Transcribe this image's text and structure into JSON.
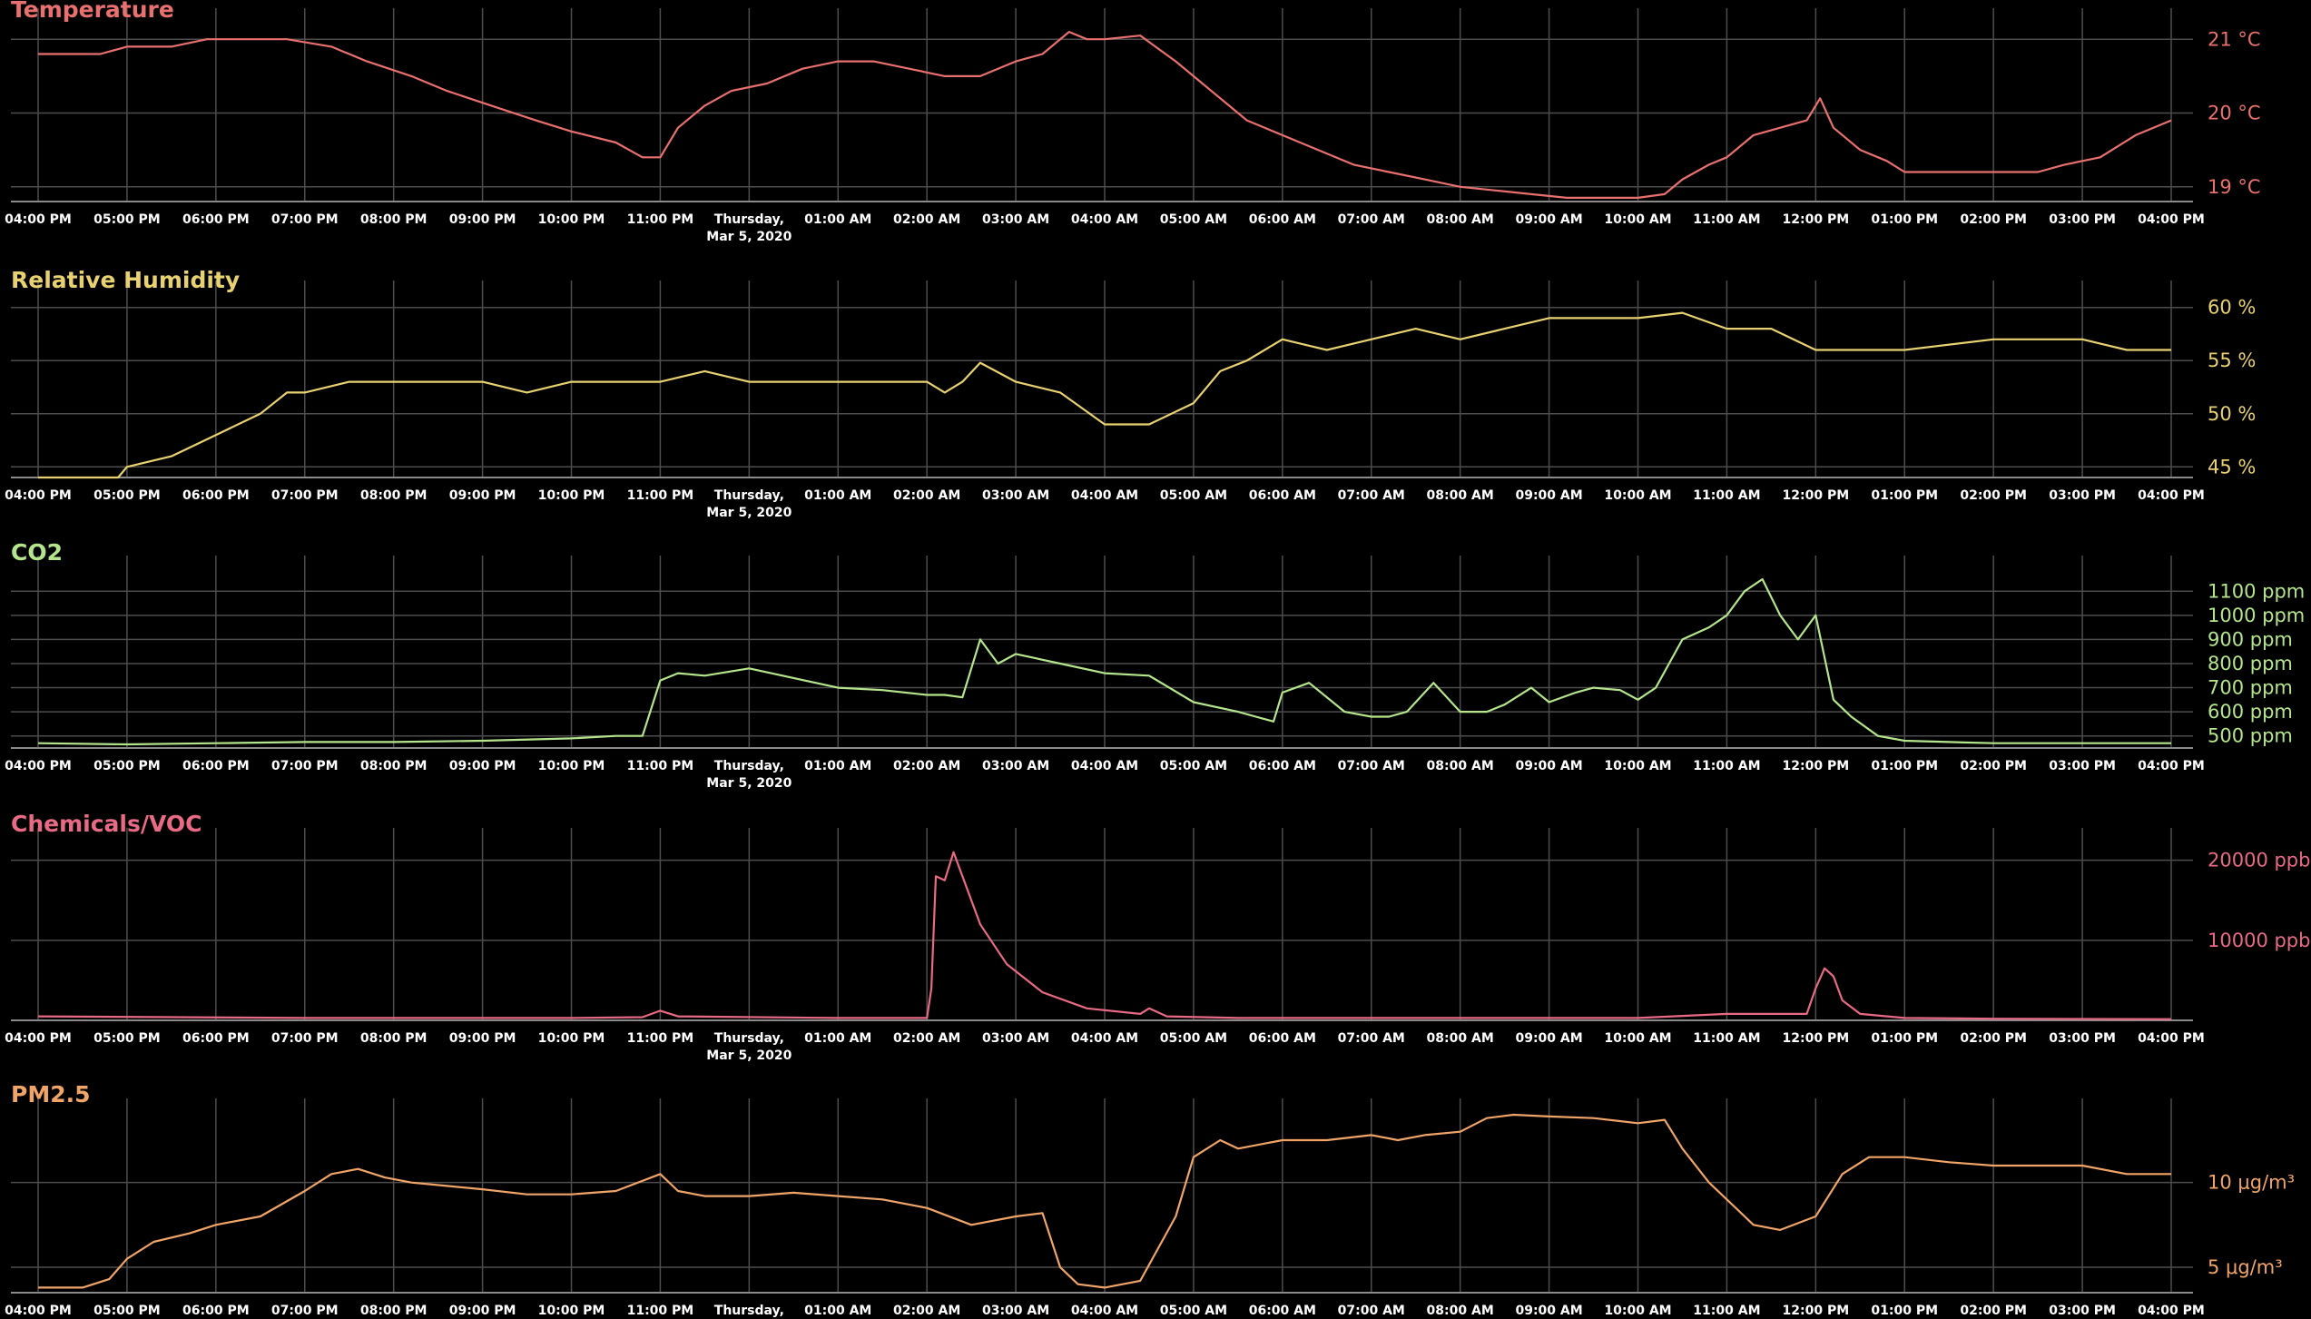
{
  "x_ticks": [
    "04:00 PM",
    "05:00 PM",
    "06:00 PM",
    "07:00 PM",
    "08:00 PM",
    "09:00 PM",
    "10:00 PM",
    "11:00 PM",
    "Thursday,",
    "01:00 AM",
    "02:00 AM",
    "03:00 AM",
    "04:00 AM",
    "05:00 AM",
    "06:00 AM",
    "07:00 AM",
    "08:00 AM",
    "09:00 AM",
    "10:00 AM",
    "11:00 AM",
    "12:00 PM",
    "01:00 PM",
    "02:00 PM",
    "03:00 PM",
    "04:00 PM"
  ],
  "x_tick_sub": "Mar 5, 2020",
  "chart_data": [
    {
      "type": "line",
      "title": "Temperature",
      "color": "#e8706e",
      "ylim": [
        18.8,
        21.2
      ],
      "ytick_values": [
        19,
        20,
        21
      ],
      "ytick_labels": [
        "19 °C",
        "20 °C",
        "21 °C"
      ],
      "x": [
        0,
        0.7,
        1,
        1.5,
        1.9,
        2.4,
        2.8,
        3.3,
        3.7,
        4.2,
        4.6,
        5.1,
        5.6,
        6.0,
        6.5,
        6.8,
        7,
        7.2,
        7.5,
        7.8,
        8.2,
        8.6,
        9,
        9.4,
        9.8,
        10.2,
        10.6,
        11,
        11.3,
        11.6,
        11.8,
        12,
        12.4,
        12.8,
        13.2,
        13.6,
        14,
        14.4,
        14.8,
        15.2,
        15.6,
        16,
        16.4,
        16.8,
        17.2,
        17.6,
        18,
        18.3,
        18.5,
        18.8,
        19,
        19.3,
        19.6,
        19.9,
        20.05,
        20.2,
        20.5,
        20.8,
        21,
        21.5,
        22,
        22.5,
        22.8,
        23.2,
        23.6,
        24
      ],
      "y": [
        20.8,
        20.8,
        20.9,
        20.9,
        21,
        21,
        21,
        20.9,
        20.7,
        20.5,
        20.3,
        20.1,
        19.9,
        19.75,
        19.6,
        19.4,
        19.4,
        19.8,
        20.1,
        20.3,
        20.4,
        20.6,
        20.7,
        20.7,
        20.6,
        20.5,
        20.5,
        20.7,
        20.8,
        21.1,
        21,
        21,
        21.05,
        20.7,
        20.3,
        19.9,
        19.7,
        19.5,
        19.3,
        19.2,
        19.1,
        19,
        18.95,
        18.9,
        18.85,
        18.85,
        18.85,
        18.9,
        19.1,
        19.3,
        19.4,
        19.7,
        19.8,
        19.9,
        20.2,
        19.8,
        19.5,
        19.35,
        19.2,
        19.2,
        19.2,
        19.2,
        19.3,
        19.4,
        19.7,
        19.9
      ]
    },
    {
      "type": "line",
      "title": "Relative Humidity",
      "color": "#e8d170",
      "ylim": [
        44,
        61
      ],
      "ytick_values": [
        45,
        50,
        55,
        60
      ],
      "ytick_labels": [
        "45 %",
        "50 %",
        "55 %",
        "60 %"
      ],
      "x": [
        0,
        0.9,
        1,
        1.5,
        2,
        2.5,
        2.8,
        3,
        3.5,
        4,
        5,
        5.5,
        6,
        6.5,
        7,
        7.5,
        8,
        9,
        10,
        10.2,
        10.4,
        10.6,
        11,
        11.5,
        12,
        12.5,
        13,
        13.3,
        13.6,
        14,
        14.5,
        15,
        15.5,
        16,
        16.5,
        17,
        17.5,
        18,
        18.5,
        19,
        19.5,
        20,
        21,
        22,
        23,
        23.5,
        24
      ],
      "y": [
        44,
        44,
        45,
        46,
        48,
        50,
        52,
        52,
        53,
        53,
        53,
        52,
        53,
        53,
        53,
        54,
        53,
        53,
        53,
        52,
        53,
        54.8,
        53,
        52,
        49,
        49,
        51,
        54,
        55,
        57,
        56,
        57,
        58,
        57,
        58,
        59,
        59,
        59,
        59.5,
        58,
        58,
        56,
        56,
        57,
        57,
        56,
        56
      ]
    },
    {
      "type": "line",
      "title": "CO2",
      "color": "#b4e58c",
      "ylim": [
        450,
        1180
      ],
      "ytick_values": [
        500,
        600,
        700,
        800,
        900,
        1000,
        1100
      ],
      "ytick_labels": [
        "500 ppm",
        "600 ppm",
        "700 ppm",
        "800 ppm",
        "900 ppm",
        "1000 ppm",
        "1100 ppm"
      ],
      "x": [
        0,
        1,
        2,
        3,
        4,
        5,
        6,
        6.5,
        6.8,
        7,
        7.2,
        7.5,
        8,
        8.5,
        9,
        9.5,
        10,
        10.2,
        10.4,
        10.6,
        10.8,
        11,
        11.5,
        12,
        12.5,
        13,
        13.5,
        13.7,
        13.9,
        14,
        14.3,
        14.7,
        15,
        15.2,
        15.4,
        15.7,
        16,
        16.3,
        16.5,
        16.8,
        17,
        17.3,
        17.5,
        17.8,
        18,
        18.2,
        18.5,
        18.8,
        19,
        19.2,
        19.4,
        19.6,
        19.8,
        20,
        20.2,
        20.4,
        20.7,
        21,
        21.5,
        22,
        23,
        24
      ],
      "y": [
        470,
        465,
        470,
        475,
        475,
        480,
        490,
        500,
        500,
        730,
        760,
        750,
        780,
        740,
        700,
        690,
        670,
        670,
        660,
        900,
        800,
        840,
        800,
        760,
        750,
        640,
        600,
        580,
        560,
        680,
        720,
        600,
        580,
        580,
        600,
        720,
        600,
        600,
        630,
        700,
        640,
        680,
        700,
        690,
        650,
        700,
        900,
        950,
        1000,
        1100,
        1150,
        1000,
        900,
        1000,
        650,
        580,
        500,
        480,
        475,
        470,
        470,
        470
      ]
    },
    {
      "type": "line",
      "title": "Chemicals/VOC",
      "color": "#e86a84",
      "ylim": [
        0,
        22000
      ],
      "ytick_values": [
        10000,
        20000
      ],
      "ytick_labels": [
        "10000 ppb",
        "20000 ppb"
      ],
      "x": [
        0,
        3,
        6,
        6.8,
        7,
        7.2,
        9,
        10,
        10.05,
        10.1,
        10.2,
        10.3,
        10.4,
        10.6,
        10.9,
        11.3,
        11.8,
        12.4,
        12.5,
        12.7,
        13.5,
        15,
        18,
        19,
        19.9,
        20,
        20.1,
        20.2,
        20.3,
        20.5,
        21,
        22,
        24
      ],
      "y": [
        500,
        300,
        300,
        400,
        1200,
        500,
        300,
        300,
        4000,
        18000,
        17500,
        21000,
        18000,
        12000,
        7000,
        3500,
        1500,
        800,
        1500,
        500,
        300,
        300,
        300,
        800,
        800,
        4000,
        6500,
        5500,
        2500,
        800,
        300,
        200,
        150
      ]
    },
    {
      "type": "line",
      "title": "PM2.5",
      "color": "#f0a468",
      "ylim": [
        3.5,
        14
      ],
      "ytick_values": [
        5,
        10
      ],
      "ytick_labels": [
        "5 μg/m³",
        "10 μg/m³"
      ],
      "x": [
        0,
        0.5,
        0.8,
        1,
        1.3,
        1.7,
        2,
        2.5,
        3,
        3.3,
        3.6,
        3.9,
        4.2,
        4.6,
        5,
        5.5,
        6,
        6.5,
        7,
        7.2,
        7.5,
        8,
        8.5,
        9,
        9.5,
        10,
        10.5,
        11,
        11.3,
        11.5,
        11.7,
        12,
        12.4,
        12.8,
        13,
        13.3,
        13.5,
        14,
        14.5,
        15,
        15.3,
        15.6,
        16,
        16.3,
        16.6,
        17,
        17.5,
        18,
        18.3,
        18.5,
        18.8,
        19,
        19.3,
        19.6,
        20,
        20.3,
        20.6,
        21,
        21.5,
        22,
        22.5,
        23,
        23.5,
        24
      ],
      "y": [
        3.8,
        3.8,
        4.3,
        5.5,
        6.5,
        7,
        7.5,
        8,
        9.5,
        10.5,
        10.8,
        10.3,
        10,
        9.8,
        9.6,
        9.3,
        9.3,
        9.5,
        10.5,
        9.5,
        9.2,
        9.2,
        9.4,
        9.2,
        9,
        8.5,
        7.5,
        8,
        8.2,
        5,
        4,
        3.8,
        4.2,
        8,
        11.5,
        12.5,
        12,
        12.5,
        12.5,
        12.8,
        12.5,
        12.8,
        13,
        13.8,
        14,
        13.9,
        13.8,
        13.5,
        13.7,
        12,
        10,
        9,
        7.5,
        7.2,
        8,
        10.5,
        11.5,
        11.5,
        11.2,
        11,
        11,
        11,
        10.5,
        10.5
      ]
    }
  ]
}
